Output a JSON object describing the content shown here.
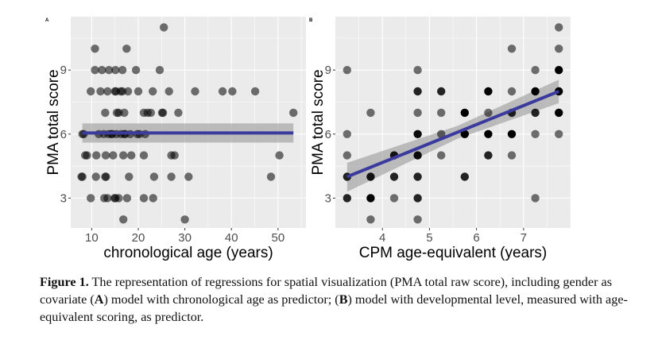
{
  "figure": {
    "caption_label": "Figure 1.",
    "caption_text_1": " The representation of regressions for spatial visualization (PMA total raw score), including gender as covariate (",
    "caption_A": "A",
    "caption_text_2": ") model with chronological age as predictor; (",
    "caption_B": "B",
    "caption_text_3": ") model with developmental level, measured with age-equivalent scoring, as predictor."
  },
  "colors": {
    "panel_bg": "#ebebeb",
    "grid": "#ffffff",
    "point": "#000000",
    "regression_line": "#3b3b9e",
    "confidence_band": "#999999"
  },
  "chart_data": [
    {
      "type": "scatter",
      "panel_tag": "A",
      "title": "",
      "xlabel": "chronological age (years)",
      "ylabel": "PMA total score",
      "xlim": [
        5.5,
        56
      ],
      "ylim": [
        1.6,
        11.5
      ],
      "xticks": [
        10,
        20,
        30,
        40,
        50
      ],
      "yticks": [
        3,
        6,
        9
      ],
      "grid": true,
      "legend": "none",
      "points": [
        [
          25.5,
          11
        ],
        [
          10.7,
          10
        ],
        [
          17.5,
          10
        ],
        [
          10.7,
          9
        ],
        [
          12.2,
          9
        ],
        [
          13.7,
          9
        ],
        [
          15.1,
          9
        ],
        [
          16.6,
          9
        ],
        [
          19.5,
          9
        ],
        [
          24.6,
          9
        ],
        [
          9.8,
          8
        ],
        [
          11.9,
          8
        ],
        [
          13.4,
          8
        ],
        [
          15.0,
          8
        ],
        [
          15.2,
          8
        ],
        [
          16.2,
          8
        ],
        [
          16.6,
          8
        ],
        [
          17.8,
          8
        ],
        [
          20.0,
          8
        ],
        [
          23.1,
          8
        ],
        [
          26.6,
          8
        ],
        [
          32.2,
          8
        ],
        [
          38.1,
          8
        ],
        [
          40.2,
          8
        ],
        [
          45.1,
          8
        ],
        [
          12.9,
          7
        ],
        [
          15.4,
          7
        ],
        [
          15.8,
          7
        ],
        [
          17.0,
          7
        ],
        [
          21.2,
          7
        ],
        [
          22.0,
          7
        ],
        [
          22.7,
          7
        ],
        [
          25.1,
          7
        ],
        [
          25.3,
          7
        ],
        [
          28.6,
          7
        ],
        [
          53.3,
          7
        ],
        [
          8.0,
          6
        ],
        [
          8.3,
          6
        ],
        [
          11.5,
          6
        ],
        [
          12.6,
          6
        ],
        [
          13.6,
          6
        ],
        [
          14.2,
          6
        ],
        [
          14.4,
          6
        ],
        [
          15.3,
          6
        ],
        [
          16.3,
          6
        ],
        [
          17.0,
          6
        ],
        [
          17.2,
          6
        ],
        [
          18.3,
          6
        ],
        [
          19.8,
          6
        ],
        [
          20.3,
          6
        ],
        [
          21.5,
          6
        ],
        [
          8.6,
          5
        ],
        [
          9.0,
          5
        ],
        [
          11.0,
          5
        ],
        [
          13.0,
          5
        ],
        [
          14.6,
          5
        ],
        [
          16.8,
          5
        ],
        [
          18.5,
          5
        ],
        [
          21.2,
          5
        ],
        [
          27.1,
          5
        ],
        [
          27.8,
          5
        ],
        [
          50.3,
          5
        ],
        [
          7.8,
          4
        ],
        [
          8.0,
          4
        ],
        [
          10.9,
          4
        ],
        [
          12.9,
          4
        ],
        [
          13.1,
          4
        ],
        [
          18.0,
          4
        ],
        [
          23.4,
          4
        ],
        [
          27.1,
          4
        ],
        [
          30.8,
          4
        ],
        [
          48.5,
          4
        ],
        [
          9.8,
          3
        ],
        [
          12.7,
          3
        ],
        [
          13.4,
          3
        ],
        [
          14.9,
          3
        ],
        [
          15.1,
          3
        ],
        [
          15.8,
          3
        ],
        [
          17.6,
          3
        ],
        [
          21.2,
          3
        ],
        [
          23.2,
          3
        ],
        [
          16.8,
          2
        ],
        [
          30.0,
          2
        ]
      ],
      "regression": {
        "x_from": 8.0,
        "x_to": 53.3,
        "y_from": 6.05,
        "y_to": 6.05,
        "ci_low": 5.6,
        "ci_high": 6.5
      }
    },
    {
      "type": "scatter",
      "panel_tag": "B",
      "title": "",
      "xlabel": "CPM age-equivalent (years)",
      "ylabel": "PMA total score",
      "xlim": [
        3.0,
        8.0
      ],
      "ylim": [
        1.6,
        11.5
      ],
      "xticks": [
        4,
        5,
        6,
        7
      ],
      "yticks": [
        3,
        6,
        9
      ],
      "grid": true,
      "legend": "none",
      "points": [
        [
          3.25,
          9
        ],
        [
          3.25,
          6
        ],
        [
          3.25,
          5
        ],
        [
          3.25,
          4
        ],
        [
          3.25,
          3
        ],
        [
          3.75,
          7
        ],
        [
          3.75,
          4
        ],
        [
          3.75,
          3
        ],
        [
          3.75,
          2
        ],
        [
          4.25,
          5
        ],
        [
          4.25,
          4
        ],
        [
          4.25,
          3
        ],
        [
          4.75,
          9
        ],
        [
          4.75,
          8
        ],
        [
          4.75,
          7
        ],
        [
          4.75,
          6
        ],
        [
          4.75,
          5
        ],
        [
          4.75,
          4
        ],
        [
          4.75,
          3
        ],
        [
          4.75,
          2
        ],
        [
          5.25,
          8
        ],
        [
          5.25,
          7
        ],
        [
          5.25,
          6
        ],
        [
          5.25,
          5
        ],
        [
          5.75,
          7
        ],
        [
          5.75,
          6
        ],
        [
          5.75,
          4
        ],
        [
          6.25,
          8
        ],
        [
          6.25,
          7
        ],
        [
          6.25,
          6
        ],
        [
          6.25,
          5
        ],
        [
          6.75,
          10
        ],
        [
          6.75,
          8
        ],
        [
          6.75,
          7
        ],
        [
          6.75,
          6
        ],
        [
          6.75,
          5
        ],
        [
          7.25,
          9
        ],
        [
          7.25,
          8
        ],
        [
          7.25,
          7
        ],
        [
          7.25,
          6
        ],
        [
          7.25,
          3
        ],
        [
          7.75,
          11
        ],
        [
          7.75,
          10
        ],
        [
          7.75,
          9
        ],
        [
          7.75,
          8
        ],
        [
          7.75,
          7
        ],
        [
          7.75,
          6
        ]
      ],
      "point_darkness": [
        0.55,
        0.55,
        0.55,
        0.85,
        0.85,
        0.55,
        0.9,
        1.0,
        0.55,
        0.9,
        0.85,
        0.55,
        0.55,
        0.85,
        0.55,
        0.95,
        0.95,
        0.85,
        0.85,
        0.55,
        0.85,
        0.55,
        0.55,
        0.55,
        1.0,
        1.0,
        0.85,
        1.0,
        0.55,
        1.0,
        0.85,
        0.55,
        0.55,
        0.85,
        1.0,
        0.55,
        0.55,
        1.0,
        0.85,
        0.55,
        0.55,
        0.55,
        0.55,
        1.0,
        1.0,
        1.0,
        0.55
      ],
      "regression": {
        "x_from": 3.25,
        "x_to": 7.75,
        "y_from": 4.0,
        "y_to": 8.0,
        "ci_low_from": 3.3,
        "ci_high_from": 4.65,
        "ci_low_to": 7.45,
        "ci_high_to": 8.55,
        "ci_mid_x": 5.6,
        "ci_mid_half": 0.3
      }
    }
  ]
}
